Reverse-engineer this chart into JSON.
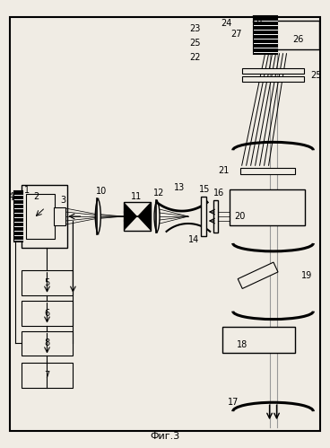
{
  "bg_color": "#f0ece4",
  "caption": "Фиг.3",
  "fig_width": 3.68,
  "fig_height": 4.99,
  "dpi": 100
}
